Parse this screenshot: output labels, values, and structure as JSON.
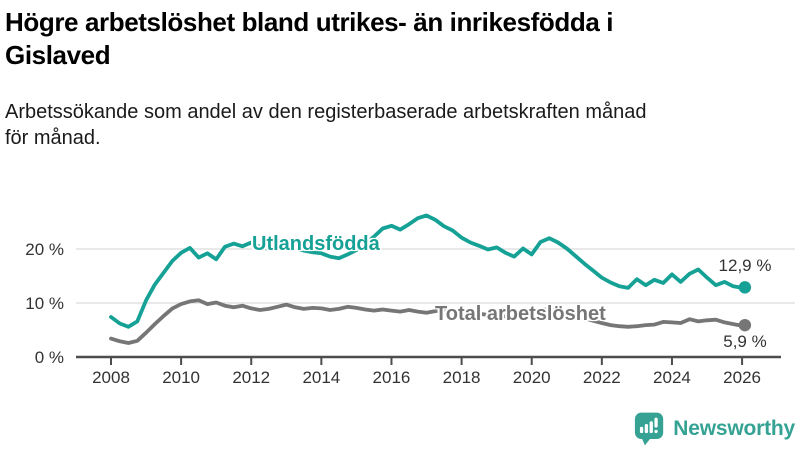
{
  "header": {
    "title": "Högre arbetslöshet bland utrikes- än inrikesfödda i Gislaved",
    "title_lines": [
      "Högre arbetslöshet bland utrikes- än inrikesfödda i",
      "Gislaved"
    ],
    "subtitle": "Arbetssökande som andel av den registerbaserade arbetskraften månad för månad.",
    "subtitle_lines": [
      "Arbetssökande som andel av den registerbaserade arbetskraften månad",
      "för månad."
    ]
  },
  "style": {
    "accent_teal": "#15a195",
    "line_gray": "#767676",
    "grid_color": "#dcdcdc",
    "axis_color": "#4d4d4d",
    "tick_text_color": "#333333",
    "brand_color": "#35a294"
  },
  "chart_data": {
    "type": "line",
    "title": "Högre arbetslöshet bland utrikes- än inrikesfödda i Gislaved",
    "subtitle": "Arbetssökande som andel av den registerbaserade arbetskraften månad för månad.",
    "xlabel": "",
    "ylabel": "",
    "x_unit": "decimal_year",
    "ylim": [
      0,
      27
    ],
    "grid": "horizontal",
    "legend": "inline-labels",
    "yticks": [
      {
        "value": 0,
        "label": "0 %"
      },
      {
        "value": 10,
        "label": "10 %"
      },
      {
        "value": 20,
        "label": "20 %"
      }
    ],
    "xticks": [
      2008,
      2010,
      2012,
      2014,
      2016,
      2018,
      2020,
      2022,
      2024,
      2026
    ],
    "xtick_labels": [
      "2008",
      "2010",
      "2012",
      "2014",
      "2016",
      "2018",
      "2020",
      "2022",
      "2024",
      "2026"
    ],
    "x": [
      2008,
      2008.25,
      2008.5,
      2008.75,
      2009,
      2009.25,
      2009.5,
      2009.75,
      2010,
      2010.25,
      2010.5,
      2010.75,
      2011,
      2011.25,
      2011.5,
      2011.75,
      2012,
      2012.25,
      2012.5,
      2012.75,
      2013,
      2013.25,
      2013.5,
      2013.75,
      2014,
      2014.25,
      2014.5,
      2014.75,
      2015,
      2015.25,
      2015.5,
      2015.75,
      2016,
      2016.25,
      2016.5,
      2016.75,
      2017,
      2017.25,
      2017.5,
      2017.75,
      2018,
      2018.25,
      2018.5,
      2018.75,
      2019,
      2019.25,
      2019.5,
      2019.75,
      2020,
      2020.25,
      2020.5,
      2020.75,
      2021,
      2021.25,
      2021.5,
      2021.75,
      2022,
      2022.25,
      2022.5,
      2022.75,
      2023,
      2023.25,
      2023.5,
      2023.75,
      2024,
      2024.25,
      2024.5,
      2024.75,
      2025,
      2025.25,
      2025.5,
      2025.75,
      2026,
      2026.08
    ],
    "series": [
      {
        "key": "utlandsfodda",
        "name": "Utlandsfödda",
        "color": "#15a195",
        "end_label": "12,9 %",
        "end_value": 12.9,
        "values": [
          7.4,
          6.2,
          5.6,
          6.6,
          10.5,
          13.4,
          15.6,
          17.8,
          19.3,
          20.2,
          18.4,
          19.2,
          18.1,
          20.4,
          21.0,
          20.5,
          21.2,
          20.4,
          20.0,
          20.6,
          21.0,
          20.2,
          19.7,
          19.4,
          19.2,
          18.6,
          18.3,
          19.0,
          19.8,
          20.9,
          22.3,
          23.8,
          24.3,
          23.6,
          24.6,
          25.7,
          26.2,
          25.4,
          24.2,
          23.4,
          22.1,
          21.2,
          20.6,
          19.9,
          20.3,
          19.3,
          18.6,
          20.1,
          19.0,
          21.3,
          22.0,
          21.2,
          20.1,
          18.7,
          17.3,
          16.0,
          14.7,
          13.8,
          13.1,
          12.8,
          14.4,
          13.3,
          14.3,
          13.7,
          15.3,
          13.9,
          15.4,
          16.2,
          14.7,
          13.3,
          13.9,
          13.1,
          12.8,
          12.9
        ]
      },
      {
        "key": "total-arbetsloshet",
        "name": "Total arbetslöshet",
        "color": "#767676",
        "end_label": "5,9 %",
        "end_value": 5.9,
        "values": [
          3.4,
          2.9,
          2.6,
          3.0,
          4.5,
          6.1,
          7.6,
          9.0,
          9.8,
          10.3,
          10.5,
          9.8,
          10.1,
          9.5,
          9.2,
          9.5,
          9.0,
          8.7,
          8.9,
          9.3,
          9.7,
          9.2,
          8.9,
          9.1,
          9.0,
          8.7,
          8.9,
          9.3,
          9.1,
          8.8,
          8.6,
          8.8,
          8.6,
          8.4,
          8.7,
          8.4,
          8.2,
          8.5,
          8.7,
          8.4,
          8.5,
          8.2,
          8.0,
          7.8,
          7.6,
          7.5,
          7.4,
          7.6,
          7.9,
          8.6,
          8.9,
          8.6,
          8.2,
          7.8,
          7.2,
          6.7,
          6.3,
          5.9,
          5.7,
          5.6,
          5.7,
          5.9,
          6.0,
          6.5,
          6.4,
          6.3,
          7.0,
          6.6,
          6.8,
          6.9,
          6.4,
          6.1,
          5.8,
          5.9
        ]
      }
    ]
  },
  "footer": {
    "brand": "Newsworthy"
  }
}
